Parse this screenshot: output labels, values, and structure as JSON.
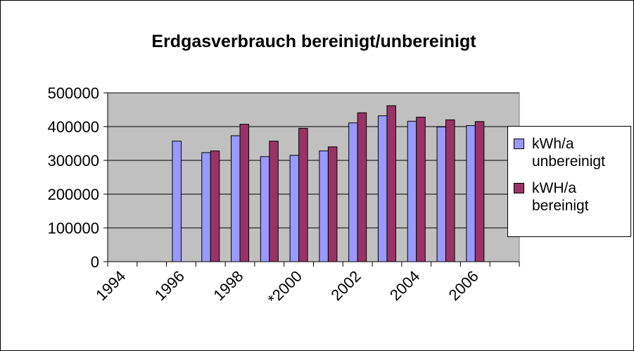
{
  "chart_data": {
    "type": "bar",
    "title": "Erdgasverbrauch bereinigt/unbereinigt",
    "categories": [
      "1994",
      null,
      "1996",
      null,
      "1998",
      null,
      "*2000",
      null,
      "2002",
      null,
      "2004",
      null,
      "2006",
      null
    ],
    "series": [
      {
        "name": "kWh/a unbereinigt",
        "color": "#9999ff",
        "values": [
          null,
          null,
          357000,
          323000,
          373000,
          311000,
          315000,
          328000,
          411000,
          432000,
          416000,
          399000,
          403000,
          null
        ]
      },
      {
        "name": "kWH/a bereinigt",
        "color": "#993366",
        "values": [
          null,
          null,
          null,
          328000,
          407000,
          357000,
          395000,
          340000,
          441000,
          462000,
          428000,
          420000,
          415000,
          null
        ]
      }
    ],
    "ylim": [
      0,
      500000
    ],
    "yticks": [
      0,
      100000,
      200000,
      300000,
      400000,
      500000
    ],
    "grid": true,
    "legend": "right"
  }
}
